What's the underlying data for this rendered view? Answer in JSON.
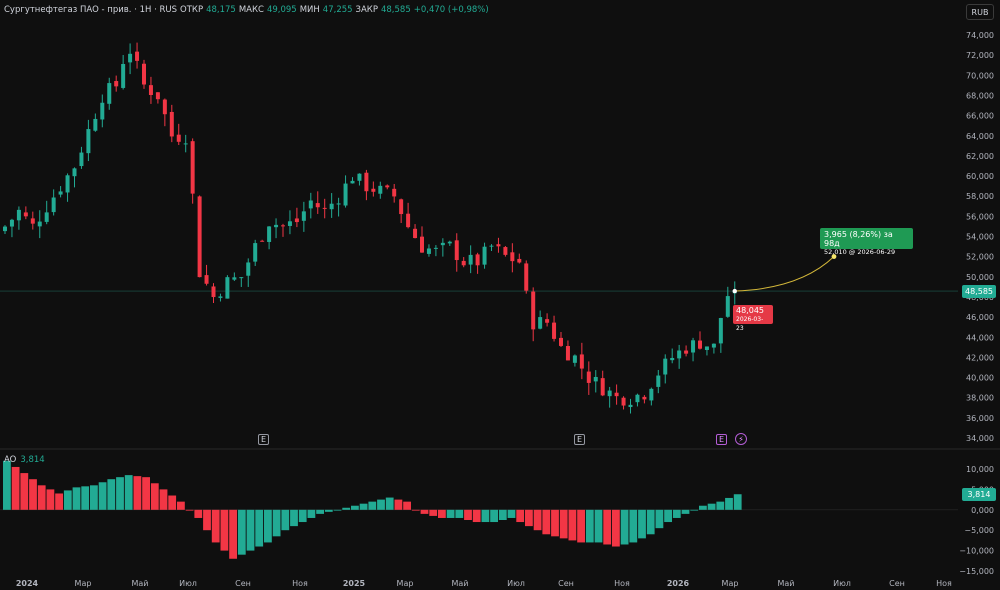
{
  "header": {
    "title": "Сургутнефтегаз ПАО - прив. · 1Н · RUS",
    "open_label": "ОТКР",
    "open": "48,175",
    "high_label": "МАКС",
    "high": "49,095",
    "low_label": "МИН",
    "low": "47,255",
    "close_label": "ЗАКР",
    "close": "48,585",
    "change": "+0,470 (+0,98%)"
  },
  "currency_button": "RUB",
  "price_axis": {
    "ticks": [
      "74,000",
      "72,000",
      "70,000",
      "68,000",
      "66,000",
      "64,000",
      "62,000",
      "60,000",
      "58,000",
      "56,000",
      "54,000",
      "52,000",
      "50,000",
      "48,000",
      "46,000",
      "44,000",
      "42,000",
      "40,000",
      "38,000",
      "36,000",
      "34,000"
    ],
    "last_price": "48,585"
  },
  "projection": {
    "line1": "3,965 (8,26%) за 98д",
    "line2": "52,010 @ 2026-06-29"
  },
  "low_marker": {
    "price": "48,045",
    "date": "2026-03-23"
  },
  "events": {
    "earnings": "E",
    "dividend": "⚡"
  },
  "indicator": {
    "name": "AO",
    "value": "3,814",
    "ticks": [
      "10,000",
      "5,000",
      "0,000",
      "−5,000",
      "−10,000",
      "−15,000"
    ]
  },
  "time_axis": [
    "2024",
    "Мар",
    "Май",
    "Июл",
    "Сен",
    "Ноя",
    "2025",
    "Мар",
    "Май",
    "Июл",
    "Сен",
    "Ноя",
    "2026",
    "Мар",
    "Май",
    "Июл",
    "Сен",
    "Ноя"
  ],
  "chart_data": {
    "type": "candlestick",
    "close_anchors": [
      [
        0,
        55
      ],
      [
        2,
        56.5
      ],
      [
        4,
        55
      ],
      [
        6,
        57
      ],
      [
        7,
        58
      ],
      [
        10,
        61
      ],
      [
        12,
        64.5
      ],
      [
        14,
        68
      ],
      [
        16,
        69
      ],
      [
        17,
        71.5
      ],
      [
        18,
        72.5
      ],
      [
        20,
        69
      ],
      [
        22,
        68
      ],
      [
        24,
        64
      ],
      [
        26,
        64
      ],
      [
        27,
        58
      ],
      [
        28,
        50.5
      ],
      [
        30,
        48
      ],
      [
        32,
        49.5
      ],
      [
        34,
        50
      ],
      [
        36,
        53
      ],
      [
        38,
        55.5
      ],
      [
        40,
        55
      ],
      [
        42,
        55.5
      ],
      [
        44,
        57.5
      ],
      [
        46,
        56.5
      ],
      [
        48,
        58
      ],
      [
        50,
        60
      ],
      [
        52,
        59
      ],
      [
        54,
        58.5
      ],
      [
        56,
        58
      ],
      [
        58,
        55
      ],
      [
        60,
        53
      ],
      [
        62,
        52.5
      ],
      [
        64,
        53
      ],
      [
        66,
        51.5
      ],
      [
        68,
        51.5
      ],
      [
        70,
        53
      ],
      [
        72,
        52
      ],
      [
        74,
        51.5
      ],
      [
        75,
        48
      ],
      [
        76,
        45.5
      ],
      [
        78,
        45.5
      ],
      [
        80,
        43
      ],
      [
        82,
        42
      ],
      [
        84,
        40
      ],
      [
        86,
        39
      ],
      [
        88,
        38
      ],
      [
        90,
        38
      ],
      [
        92,
        38.5
      ],
      [
        94,
        40.5
      ],
      [
        96,
        42
      ],
      [
        98,
        43
      ],
      [
        100,
        43.5
      ],
      [
        102,
        43
      ],
      [
        103,
        46
      ],
      [
        104,
        48.2
      ],
      [
        105,
        48.585
      ]
    ],
    "ao_anchors": [
      [
        0,
        12
      ],
      [
        4,
        6
      ],
      [
        6,
        4
      ],
      [
        8,
        5.5
      ],
      [
        10,
        6
      ],
      [
        12,
        7.5
      ],
      [
        14,
        8.5
      ],
      [
        16,
        8
      ],
      [
        18,
        5
      ],
      [
        20,
        2
      ],
      [
        22,
        -2
      ],
      [
        24,
        -8
      ],
      [
        26,
        -12
      ],
      [
        28,
        -10
      ],
      [
        30,
        -8
      ],
      [
        32,
        -5
      ],
      [
        34,
        -3
      ],
      [
        36,
        -1
      ],
      [
        38,
        0
      ],
      [
        40,
        1
      ],
      [
        42,
        2
      ],
      [
        44,
        3
      ],
      [
        46,
        2
      ],
      [
        47,
        0
      ],
      [
        48,
        -1
      ],
      [
        50,
        -2
      ],
      [
        52,
        -2
      ],
      [
        54,
        -3
      ],
      [
        56,
        -3
      ],
      [
        58,
        -2
      ],
      [
        60,
        -4
      ],
      [
        62,
        -6
      ],
      [
        64,
        -7
      ],
      [
        66,
        -8
      ],
      [
        68,
        -8
      ],
      [
        70,
        -9
      ],
      [
        72,
        -8
      ],
      [
        74,
        -6
      ],
      [
        76,
        -3
      ],
      [
        78,
        -1
      ],
      [
        79,
        0
      ],
      [
        80,
        1
      ],
      [
        82,
        2
      ],
      [
        84,
        3.814
      ]
    ],
    "ylim": [
      34,
      75
    ],
    "ao_ylim": [
      -15,
      14
    ],
    "colors": {
      "up": "#22ab94",
      "down": "#f23645",
      "projection": "#d4b83a"
    }
  }
}
